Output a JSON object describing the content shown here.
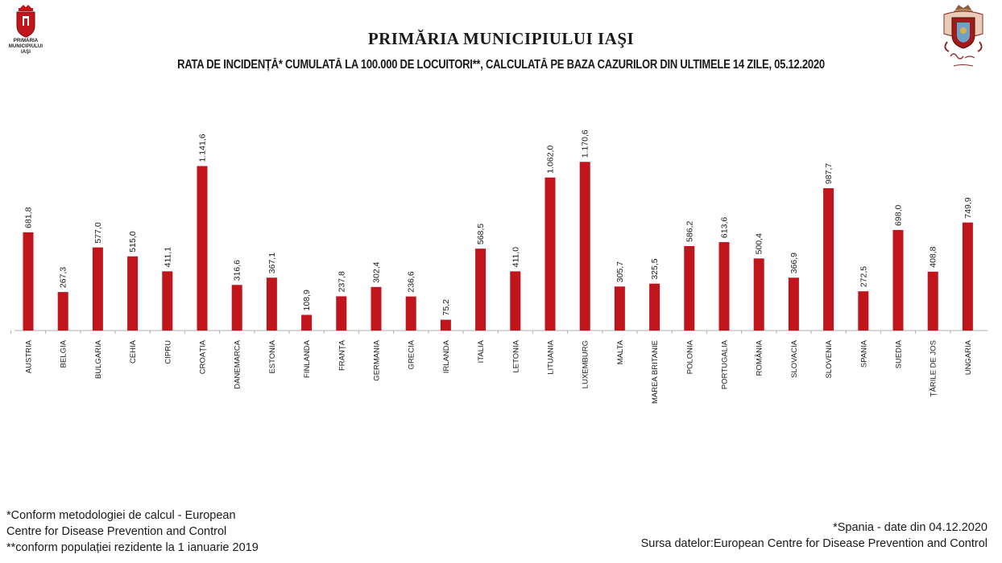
{
  "header": {
    "title": "PRIMĂRIA MUNICIPIULUI IAŞI",
    "subtitle": "RATA DE INCIDENȚĂ* CUMULATĂ LA 100.000 DE LOCUITORI**, CALCULATĂ PE BAZA CAZURILOR DIN ULTIMELE 14 ZILE, 05.12.2020",
    "logo_left_lines": [
      "PRIMĂRIA",
      "MUNICIPIULUI",
      "IAŞI"
    ],
    "logo_left_icon": "city-coat-of-arms-icon",
    "logo_right_icon": "iasi-crest-icon"
  },
  "colors": {
    "bar": "#c0151c",
    "axis": "#b0b0b0",
    "text": "#1a1a1a"
  },
  "chart_data": {
    "type": "bar",
    "title": "",
    "xlabel": "",
    "ylabel": "",
    "ylim": [
      0,
      1200
    ],
    "categories": [
      "AUSTRIA",
      "BELGIA",
      "BULGARIA",
      "CEHIA",
      "CIPRU",
      "CROAȚIA",
      "DANEMARCA",
      "ESTONIA",
      "FINLANDA",
      "FRANȚA",
      "GERMANIA",
      "GRECIA",
      "IRLANDA",
      "ITALIA",
      "LETONIA",
      "LITUANIA",
      "LUXEMBURG",
      "MALTA",
      "MAREA BRITANIE",
      "POLONIA",
      "PORTUGALIA",
      "ROMÂNIA",
      "SLOVACIA",
      "SLOVENIA",
      "SPANIA",
      "SUEDIA",
      "ȚĂRILE DE JOS",
      "UNGARIA"
    ],
    "values": [
      681.8,
      267.3,
      577.0,
      515.0,
      411.1,
      1141.6,
      316.6,
      367.1,
      108.9,
      237.8,
      302.4,
      236.6,
      75.2,
      568.5,
      411.0,
      1062.0,
      1170.6,
      305.7,
      325.5,
      586.2,
      613.6,
      500.4,
      366.9,
      987.7,
      272.5,
      698.0,
      408.8,
      749.9
    ],
    "value_labels": [
      "681,8",
      "267,3",
      "577,0",
      "515,0",
      "411,1",
      "1.141,6",
      "316,6",
      "367,1",
      "108,9",
      "237,8",
      "302,4",
      "236,6",
      "75,2",
      "568,5",
      "411,0",
      "1.062,0",
      "1.170,6",
      "305,7",
      "325,5",
      "586,2",
      "613,6",
      "500,4",
      "366,9",
      "987,7",
      "272,5",
      "698,0",
      "408,8",
      "749,9"
    ]
  },
  "footnotes": {
    "left": [
      "*Conform metodologiei de calcul - European",
      "Centre for Disease Prevention and Control",
      "**conform populației rezidente la 1 ianuarie 2019"
    ],
    "right": [
      "*Spania - date din 04.12.2020",
      "Sursa datelor:European Centre for Disease Prevention and Control"
    ]
  }
}
